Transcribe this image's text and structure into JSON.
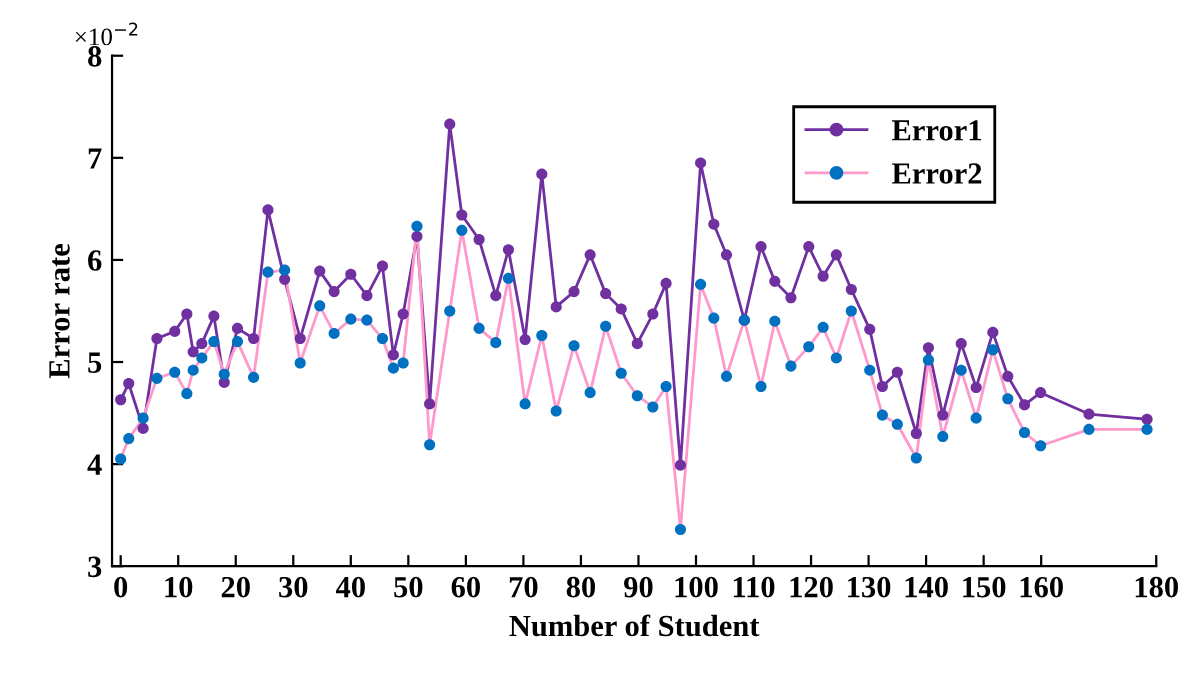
{
  "chart_data": {
    "type": "line",
    "xlabel": "Number of Student",
    "ylabel": "Error rate",
    "annotations": [
      "×10$^{−2}$"
    ],
    "x": [
      0,
      1.4,
      3.9,
      6.3,
      9.4,
      11.5,
      12.6,
      14.1,
      16.2,
      18.0,
      20.3,
      23.1,
      25.6,
      28.5,
      31.2,
      34.6,
      37.1,
      40.0,
      42.8,
      45.5,
      47.4,
      49.1,
      51.5,
      53.7,
      57.2,
      59.3,
      62.3,
      65.2,
      67.4,
      70.3,
      73.2,
      75.7,
      78.8,
      81.6,
      84.3,
      87.0,
      89.8,
      92.5,
      94.8,
      97.3,
      100.8,
      103.1,
      105.3,
      108.4,
      111.3,
      113.7,
      116.5,
      119.6,
      122.1,
      124.4,
      127.0,
      130.2,
      132.4,
      135.0,
      138.3,
      140.4,
      142.9,
      146.1,
      148.7,
      151.6,
      154.2,
      157.1,
      159.9,
      168.3,
      178.4
    ],
    "series": [
      {
        "name": "Error1",
        "color": "#7030a0",
        "values": [
          4.63,
          4.79,
          4.35,
          5.23,
          5.3,
          5.47,
          5.1,
          5.18,
          5.45,
          4.8,
          5.33,
          5.23,
          6.49,
          5.81,
          5.23,
          5.89,
          5.69,
          5.86,
          5.65,
          5.94,
          5.07,
          5.47,
          6.23,
          4.59,
          7.33,
          6.44,
          6.2,
          5.65,
          6.1,
          5.22,
          6.84,
          5.54,
          5.69,
          6.05,
          5.67,
          5.52,
          5.18,
          5.47,
          5.77,
          3.99,
          6.95,
          6.35,
          6.05,
          5.41,
          6.13,
          5.79,
          5.63,
          6.13,
          5.84,
          6.05,
          5.71,
          5.32,
          4.76,
          4.9,
          4.3,
          5.14,
          4.48,
          5.18,
          4.75,
          5.29,
          4.86,
          4.58,
          4.7,
          4.49,
          4.44
        ]
      },
      {
        "name": "Error2",
        "color": "#ff99cc",
        "colors": [
          "#0070c0",
          "#0070c0",
          "#0070c0",
          "#0070c0",
          "#0070c0",
          "#0070c0",
          "#0070c0",
          "#0070c0",
          "#0070c0",
          "#0070c0",
          "#0070c0",
          "#0070c0",
          "#0070c0",
          "#0070c0",
          "#0070c0",
          "#0070c0",
          "#0070c0",
          "#0070c0",
          "#0070c0",
          "#0070c0",
          "#0070c0",
          "#0070c0",
          "#0070c0",
          "#0070c0",
          "#0070c0",
          "#0070c0",
          "#0070c0",
          "#0070c0",
          "#0070c0",
          "#0070c0",
          "#0070c0",
          "#0070c0",
          "#0070c0",
          "#0070c0",
          "#0070c0",
          "#0070c0",
          "#0070c0",
          "#0070c0",
          "#0070c0",
          "#0070c0",
          "#0070c0",
          "#0070c0",
          "#0070c0",
          "#0070c0",
          "#0070c0",
          "#0070c0",
          "#0070c0",
          "#0070c0",
          "#0070c0",
          "#0070c0",
          "#0070c0",
          "#0070c0",
          "#0070c0",
          "#0070c0",
          "#0070c0",
          "#0070c0",
          "#0070c0",
          "#0070c0",
          "#0070c0",
          "#0070c0",
          "#0070c0",
          "#0070c0",
          "#0070c0",
          "#0070c0",
          "#0070c0"
        ],
        "values": [
          4.05,
          4.25,
          4.45,
          4.84,
          4.9,
          4.69,
          4.92,
          5.04,
          5.2,
          4.88,
          5.2,
          4.85,
          5.88,
          5.9,
          4.99,
          5.55,
          5.28,
          5.42,
          5.41,
          5.23,
          4.94,
          4.99,
          6.33,
          4.19,
          5.5,
          6.29,
          5.33,
          5.19,
          5.82,
          4.59,
          5.26,
          4.52,
          5.16,
          4.7,
          5.35,
          4.89,
          4.67,
          4.56,
          4.76,
          3.36,
          5.76,
          5.43,
          4.86,
          5.41,
          4.76,
          5.4,
          4.96,
          5.15,
          5.34,
          5.04,
          5.5,
          4.92,
          4.48,
          4.39,
          4.06,
          5.02,
          4.27,
          4.92,
          4.45,
          5.12,
          4.64,
          4.31,
          4.18,
          4.34,
          4.34
        ]
      }
    ],
    "xlim": [
      -1.5,
      180
    ],
    "xticks": [
      0,
      10,
      20,
      30,
      40,
      50,
      60,
      70,
      80,
      90,
      100,
      110,
      120,
      130,
      140,
      150,
      160,
      180
    ],
    "ylim": [
      3,
      8
    ],
    "yticks": [
      3,
      4,
      5,
      6,
      7,
      8
    ],
    "marker": "circle",
    "line_style": "solid",
    "grid": false,
    "legend": "top right"
  }
}
